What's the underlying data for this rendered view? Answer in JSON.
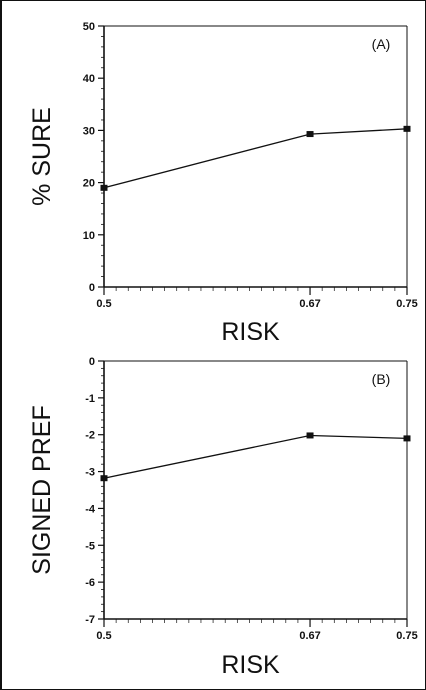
{
  "chart_data": [
    {
      "type": "line",
      "label": "(A)",
      "xlabel": "RISK",
      "ylabel": "% SURE",
      "x": [
        0.5,
        0.67,
        0.75
      ],
      "xticks": [
        "0.5",
        "0.67",
        "0.75"
      ],
      "ylim": [
        0,
        50
      ],
      "yticks": [
        0,
        10,
        20,
        30,
        40,
        50
      ],
      "series": [
        {
          "values": [
            19,
            29.3,
            30.3
          ]
        }
      ],
      "grid": false,
      "color": "#111111"
    },
    {
      "type": "line",
      "label": "(B)",
      "xlabel": "RISK",
      "ylabel": "SIGNED PREF",
      "x": [
        0.5,
        0.67,
        0.75
      ],
      "xticks": [
        "0.5",
        "0.67",
        "0.75"
      ],
      "ylim": [
        -7,
        0
      ],
      "yticks": [
        0,
        -1,
        -2,
        -3,
        -4,
        -5,
        -6,
        -7
      ],
      "series": [
        {
          "values": [
            -3.18,
            -2.02,
            -2.1
          ]
        }
      ],
      "grid": false,
      "color": "#111111"
    }
  ]
}
